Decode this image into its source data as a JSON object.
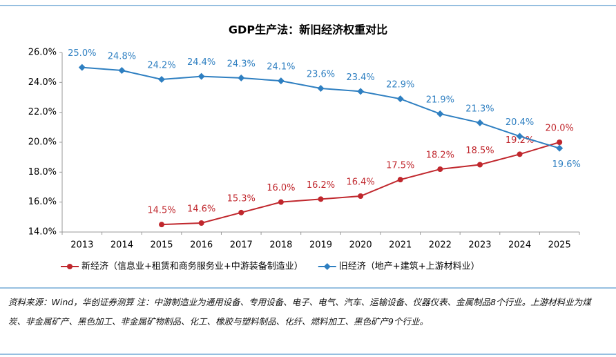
{
  "chart_data": {
    "type": "line",
    "title": "GDP生产法：新旧经济权重对比",
    "categories": [
      "2013",
      "2014",
      "2015",
      "2016",
      "2017",
      "2018",
      "2019",
      "2020",
      "2021",
      "2022",
      "2023",
      "2024",
      "2025"
    ],
    "series": [
      {
        "name": "新经济（信息业+租赁和商务服务业+中游装备制造业）",
        "color": "#c0272d",
        "marker": "circle",
        "values": [
          null,
          null,
          14.5,
          14.6,
          15.3,
          16.0,
          16.2,
          16.4,
          17.5,
          18.2,
          18.5,
          19.2,
          20.0
        ],
        "value_labels": [
          null,
          null,
          "14.5%",
          "14.6%",
          "15.3%",
          "16.0%",
          "16.2%",
          "16.4%",
          "17.5%",
          "18.2%",
          "18.5%",
          "19.2%",
          "20.0%"
        ]
      },
      {
        "name": "旧经济（地产+建筑+上游材料业）",
        "color": "#2e7fc1",
        "marker": "diamond",
        "values": [
          25.0,
          24.8,
          24.2,
          24.4,
          24.3,
          24.1,
          23.6,
          23.4,
          22.9,
          21.9,
          21.3,
          20.4,
          19.6
        ],
        "value_labels": [
          "25.0%",
          "24.8%",
          "24.2%",
          "24.4%",
          "24.3%",
          "24.1%",
          "23.6%",
          "23.4%",
          "22.9%",
          "21.9%",
          "21.3%",
          "20.4%",
          "19.6%"
        ]
      }
    ],
    "ylim": [
      14,
      26
    ],
    "yticks": [
      {
        "value": 14,
        "label": "14.0%"
      },
      {
        "value": 16,
        "label": "16.0%"
      },
      {
        "value": 18,
        "label": "18.0%"
      },
      {
        "value": 20,
        "label": "20.0%"
      },
      {
        "value": 22,
        "label": "22.0%"
      },
      {
        "value": 24,
        "label": "24.0%"
      },
      {
        "value": 26,
        "label": "26.0%"
      }
    ],
    "legend": "bottom",
    "footnote": "资料来源：Wind，华创证券测算 注：中游制造业为通用设备、专用设备、电子、电气、汽车、运输设备、仪器仪表、金属制品8个行业。上游材料业为煤炭、非金属矿产、黑色加工、非金属矿物制品、化工、橡胶与塑料制品、化纤、燃料加工、黑色矿产9个行业。"
  }
}
